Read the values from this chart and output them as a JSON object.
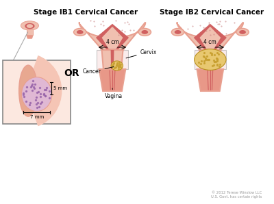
{
  "title_ib1": "Stage IB1 Cervical Cancer",
  "title_ib2": "Stage IB2 Cervical Cancer",
  "label_or": "OR",
  "label_cancer": "Cancer",
  "label_cervix": "Cervix",
  "label_vagina": "Vagina",
  "label_4cm_1": "4 cm",
  "label_4cm_2": "4 cm",
  "label_5mm": "5 mm",
  "label_7mm": "7 mm",
  "copyright": "© 2012 Terese Winslow LLC\nU.S. Govt. has certain rights",
  "bg_color": "#ffffff",
  "uterus_outer": "#e8a090",
  "uterus_fill": "#f0c0b0",
  "uterus_wall": "#d06060",
  "vagina_fill": "#e89888",
  "cancer_small_spots": "#9966aa",
  "cancer_large": "#e8c870",
  "cancer_large_spots": "#c8a030",
  "inset_bg": "#fce8e0",
  "dots_color": "#c88080"
}
